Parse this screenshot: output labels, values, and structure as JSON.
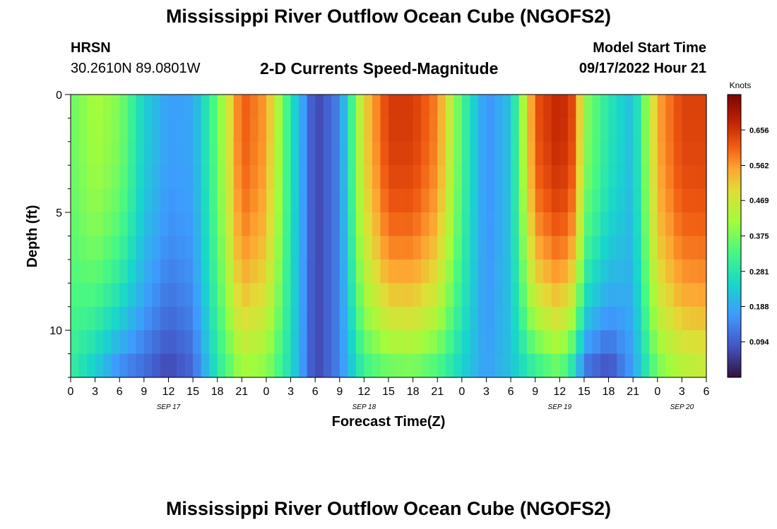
{
  "header": {
    "title": "Mississippi River Outflow Ocean Cube (NGOFS2)",
    "station": "HRSN",
    "coordinates": "30.2610N  89.0801W",
    "subtitle": "2-D Currents Speed-Magnitude",
    "model_start_label": "Model Start Time",
    "model_start_value": "09/17/2022 Hour 21"
  },
  "footer": {
    "title": "Mississippi River Outflow Ocean Cube (NGOFS2)"
  },
  "chart_data": {
    "type": "heatmap",
    "title": "2-D Currents Speed-Magnitude",
    "xlabel": "Forecast Time(Z)",
    "ylabel": "Depth (ft)",
    "ylim": [
      0,
      12
    ],
    "y_ticks": [
      "0",
      "5",
      "10"
    ],
    "x_tick_labels": [
      "0",
      "3",
      "6",
      "9",
      "12",
      "15",
      "18",
      "21",
      "0",
      "3",
      "6",
      "9",
      "12",
      "15",
      "18",
      "21",
      "0",
      "3",
      "6",
      "9",
      "12",
      "15",
      "18",
      "21",
      "0",
      "3",
      "6"
    ],
    "date_labels": [
      {
        "label": "SEP 17",
        "hour": 12
      },
      {
        "label": "SEP 18",
        "hour": 36
      },
      {
        "label": "SEP 19",
        "hour": 60
      },
      {
        "label": "SEP 20",
        "hour": 75
      }
    ],
    "time_range_hours": [
      0,
      78
    ],
    "colorbar": {
      "units": "Knots",
      "ticks": [
        "0.656",
        "0.562",
        "0.469",
        "0.375",
        "0.281",
        "0.188",
        "0.094"
      ],
      "tick_values": [
        0.656,
        0.562,
        0.469,
        0.375,
        0.281,
        0.188,
        0.094
      ],
      "range": [
        0.0,
        0.75
      ]
    },
    "depth_bins": [
      0,
      1,
      2,
      3,
      4,
      5,
      6,
      7,
      8,
      9,
      10,
      11,
      12
    ],
    "approx_profile_knots": [
      {
        "hour": 0,
        "surface": 0.36,
        "bottom": 0.3
      },
      {
        "hour": 3,
        "surface": 0.42,
        "bottom": 0.22
      },
      {
        "hour": 6,
        "surface": 0.38,
        "bottom": 0.13
      },
      {
        "hour": 9,
        "surface": 0.24,
        "bottom": 0.1
      },
      {
        "hour": 12,
        "surface": 0.17,
        "bottom": 0.06
      },
      {
        "hour": 15,
        "surface": 0.18,
        "bottom": 0.1
      },
      {
        "hour": 18,
        "surface": 0.36,
        "bottom": 0.28
      },
      {
        "hour": 21,
        "surface": 0.62,
        "bottom": 0.4
      },
      {
        "hour": 24,
        "surface": 0.56,
        "bottom": 0.38
      },
      {
        "hour": 27,
        "surface": 0.28,
        "bottom": 0.26
      },
      {
        "hour": 30,
        "surface": 0.06,
        "bottom": 0.06
      },
      {
        "hour": 33,
        "surface": 0.14,
        "bottom": 0.14
      },
      {
        "hour": 36,
        "surface": 0.5,
        "bottom": 0.3
      },
      {
        "hour": 39,
        "surface": 0.65,
        "bottom": 0.34
      },
      {
        "hour": 42,
        "surface": 0.65,
        "bottom": 0.35
      },
      {
        "hour": 45,
        "surface": 0.58,
        "bottom": 0.31
      },
      {
        "hour": 48,
        "surface": 0.33,
        "bottom": 0.24
      },
      {
        "hour": 51,
        "surface": 0.15,
        "bottom": 0.17
      },
      {
        "hour": 54,
        "surface": 0.22,
        "bottom": 0.22
      },
      {
        "hour": 57,
        "surface": 0.62,
        "bottom": 0.28
      },
      {
        "hour": 60,
        "surface": 0.68,
        "bottom": 0.34
      },
      {
        "hour": 62,
        "surface": 0.62,
        "bottom": 0.22
      },
      {
        "hour": 63,
        "surface": 0.4,
        "bottom": 0.1
      },
      {
        "hour": 66,
        "surface": 0.28,
        "bottom": 0.06
      },
      {
        "hour": 69,
        "surface": 0.21,
        "bottom": 0.17
      },
      {
        "hour": 72,
        "surface": 0.55,
        "bottom": 0.36
      },
      {
        "hour": 75,
        "surface": 0.64,
        "bottom": 0.42
      },
      {
        "hour": 78,
        "surface": 0.64,
        "bottom": 0.44
      }
    ]
  }
}
